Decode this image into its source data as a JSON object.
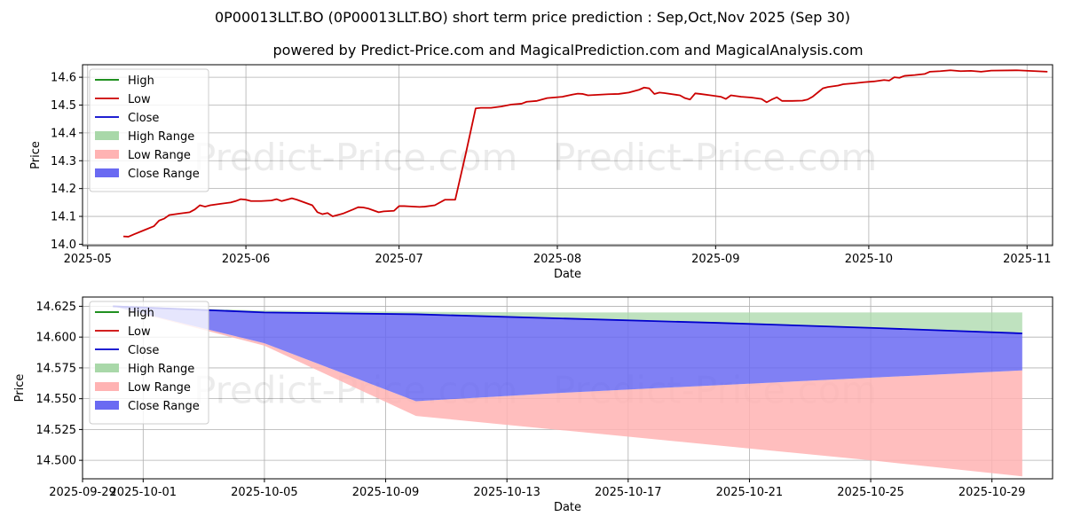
{
  "header": {
    "title": "0P00013LLT.BO (0P00013LLT.BO) short term price prediction : Sep,Oct,Nov 2025 (Sep 30)",
    "subtitle": "powered by Predict-Price.com and MagicalPrediction.com and MagicalAnalysis.com"
  },
  "watermark": "Predict-Price.com",
  "colors": {
    "high": "#008000",
    "low": "#cc0000",
    "close": "#0000cc",
    "high_range": "#a9d8a9",
    "low_range": "#ffb3b3",
    "close_range": "#6a6af2"
  },
  "chart_data": [
    {
      "type": "line",
      "title": "",
      "xlabel": "Date",
      "ylabel": "Price",
      "xlim": [
        "2025-04-30",
        "2025-11-06"
      ],
      "ylim": [
        13.995,
        14.645
      ],
      "grid": true,
      "legend_position": "top-left",
      "xticks": [
        "2025-05",
        "2025-06",
        "2025-07",
        "2025-08",
        "2025-09",
        "2025-10",
        "2025-11"
      ],
      "yticks": [
        "14.0",
        "14.1",
        "14.2",
        "14.3",
        "14.4",
        "14.5",
        "14.6"
      ],
      "legend": [
        "High",
        "Low",
        "Close",
        "High Range",
        "Low Range",
        "Close Range"
      ],
      "series": [
        {
          "name": "Low",
          "points": [
            [
              "2025-05-08",
              14.028
            ],
            [
              "2025-05-09",
              14.027
            ],
            [
              "2025-05-10",
              14.035
            ],
            [
              "2025-05-12",
              14.05
            ],
            [
              "2025-05-14",
              14.065
            ],
            [
              "2025-05-15",
              14.085
            ],
            [
              "2025-05-16",
              14.092
            ],
            [
              "2025-05-17",
              14.105
            ],
            [
              "2025-05-19",
              14.11
            ],
            [
              "2025-05-21",
              14.115
            ],
            [
              "2025-05-22",
              14.125
            ],
            [
              "2025-05-23",
              14.14
            ],
            [
              "2025-05-24",
              14.135
            ],
            [
              "2025-05-25",
              14.14
            ],
            [
              "2025-05-27",
              14.145
            ],
            [
              "2025-05-29",
              14.15
            ],
            [
              "2025-05-30",
              14.155
            ],
            [
              "2025-05-31",
              14.162
            ],
            [
              "2025-06-01",
              14.16
            ],
            [
              "2025-06-02",
              14.155
            ],
            [
              "2025-06-04",
              14.155
            ],
            [
              "2025-06-06",
              14.157
            ],
            [
              "2025-06-07",
              14.162
            ],
            [
              "2025-06-08",
              14.155
            ],
            [
              "2025-06-09",
              14.16
            ],
            [
              "2025-06-10",
              14.165
            ],
            [
              "2025-06-11",
              14.16
            ],
            [
              "2025-06-14",
              14.14
            ],
            [
              "2025-06-15",
              14.115
            ],
            [
              "2025-06-16",
              14.108
            ],
            [
              "2025-06-17",
              14.112
            ],
            [
              "2025-06-18",
              14.1
            ],
            [
              "2025-06-20",
              14.11
            ],
            [
              "2025-06-22",
              14.125
            ],
            [
              "2025-06-23",
              14.133
            ],
            [
              "2025-06-24",
              14.132
            ],
            [
              "2025-06-25",
              14.128
            ],
            [
              "2025-06-27",
              14.115
            ],
            [
              "2025-06-28",
              14.118
            ],
            [
              "2025-06-30",
              14.12
            ],
            [
              "2025-07-01",
              14.137
            ],
            [
              "2025-07-02",
              14.137
            ],
            [
              "2025-07-03",
              14.136
            ],
            [
              "2025-07-05",
              14.134
            ],
            [
              "2025-07-06",
              14.135
            ],
            [
              "2025-07-08",
              14.14
            ],
            [
              "2025-07-10",
              14.16
            ],
            [
              "2025-07-12",
              14.16
            ],
            [
              "2025-07-14",
              14.32
            ],
            [
              "2025-07-16",
              14.488
            ],
            [
              "2025-07-17",
              14.49
            ],
            [
              "2025-07-19",
              14.49
            ],
            [
              "2025-07-21",
              14.495
            ],
            [
              "2025-07-23",
              14.502
            ],
            [
              "2025-07-25",
              14.505
            ],
            [
              "2025-07-26",
              14.512
            ],
            [
              "2025-07-28",
              14.515
            ],
            [
              "2025-07-30",
              14.525
            ],
            [
              "2025-08-02",
              14.53
            ],
            [
              "2025-08-04",
              14.538
            ],
            [
              "2025-08-05",
              14.541
            ],
            [
              "2025-08-06",
              14.54
            ],
            [
              "2025-08-07",
              14.535
            ],
            [
              "2025-08-09",
              14.537
            ],
            [
              "2025-08-11",
              14.539
            ],
            [
              "2025-08-13",
              14.54
            ],
            [
              "2025-08-15",
              14.545
            ],
            [
              "2025-08-17",
              14.555
            ],
            [
              "2025-08-18",
              14.563
            ],
            [
              "2025-08-19",
              14.56
            ],
            [
              "2025-08-20",
              14.54
            ],
            [
              "2025-08-21",
              14.545
            ],
            [
              "2025-08-22",
              14.543
            ],
            [
              "2025-08-25",
              14.535
            ],
            [
              "2025-08-26",
              14.525
            ],
            [
              "2025-08-27",
              14.52
            ],
            [
              "2025-08-28",
              14.542
            ],
            [
              "2025-08-29",
              14.54
            ],
            [
              "2025-08-31",
              14.535
            ],
            [
              "2025-09-02",
              14.53
            ],
            [
              "2025-09-03",
              14.522
            ],
            [
              "2025-09-04",
              14.535
            ],
            [
              "2025-09-06",
              14.53
            ],
            [
              "2025-09-08",
              14.527
            ],
            [
              "2025-09-10",
              14.522
            ],
            [
              "2025-09-11",
              14.51
            ],
            [
              "2025-09-12",
              14.52
            ],
            [
              "2025-09-13",
              14.528
            ],
            [
              "2025-09-14",
              14.515
            ],
            [
              "2025-09-16",
              14.515
            ],
            [
              "2025-09-18",
              14.516
            ],
            [
              "2025-09-19",
              14.52
            ],
            [
              "2025-09-20",
              14.53
            ],
            [
              "2025-09-21",
              14.545
            ],
            [
              "2025-09-22",
              14.56
            ],
            [
              "2025-09-23",
              14.565
            ],
            [
              "2025-09-25",
              14.57
            ],
            [
              "2025-09-26",
              14.575
            ],
            [
              "2025-09-28",
              14.578
            ],
            [
              "2025-09-30",
              14.582
            ],
            [
              "2025-10-02",
              14.585
            ],
            [
              "2025-10-04",
              14.59
            ],
            [
              "2025-10-05",
              14.588
            ],
            [
              "2025-10-06",
              14.6
            ],
            [
              "2025-10-07",
              14.598
            ],
            [
              "2025-10-08",
              14.605
            ],
            [
              "2025-10-10",
              14.608
            ],
            [
              "2025-10-12",
              14.612
            ],
            [
              "2025-10-13",
              14.62
            ],
            [
              "2025-10-15",
              14.622
            ],
            [
              "2025-10-17",
              14.625
            ],
            [
              "2025-10-19",
              14.622
            ],
            [
              "2025-10-21",
              14.623
            ],
            [
              "2025-10-23",
              14.62
            ],
            [
              "2025-10-25",
              14.624
            ],
            [
              "2025-10-30",
              14.625
            ],
            [
              "2025-11-05",
              14.62
            ]
          ]
        }
      ]
    },
    {
      "type": "line",
      "title": "",
      "xlabel": "Date",
      "ylabel": "Price",
      "xlim": [
        "2025-09-29",
        "2025-10-31"
      ],
      "ylim": [
        14.485,
        14.6325
      ],
      "grid": true,
      "legend_position": "top-left",
      "xticks": [
        "2025-09-29",
        "2025-10-01",
        "2025-10-05",
        "2025-10-09",
        "2025-10-13",
        "2025-10-17",
        "2025-10-21",
        "2025-10-25",
        "2025-10-29"
      ],
      "yticks": [
        "14.500",
        "14.525",
        "14.550",
        "14.575",
        "14.600",
        "14.625"
      ],
      "legend": [
        "High",
        "Low",
        "Close",
        "High Range",
        "Low Range",
        "Close Range"
      ],
      "series": [
        {
          "name": "Close",
          "x": [
            "2025-09-30",
            "2025-10-05",
            "2025-10-10",
            "2025-10-15",
            "2025-10-20",
            "2025-10-25",
            "2025-10-30"
          ],
          "values": [
            14.625,
            14.62,
            14.6185,
            14.615,
            14.6115,
            14.6075,
            14.603
          ]
        },
        {
          "name": "High Range",
          "x": [
            "2025-09-30",
            "2025-10-05",
            "2025-10-10",
            "2025-10-15",
            "2025-10-20",
            "2025-10-25",
            "2025-10-30"
          ],
          "upper": [
            14.625,
            14.6215,
            14.6205,
            14.62,
            14.62,
            14.62,
            14.62
          ],
          "lower": [
            14.625,
            14.62,
            14.6185,
            14.615,
            14.6115,
            14.6075,
            14.603
          ]
        },
        {
          "name": "Close Range",
          "x": [
            "2025-09-30",
            "2025-10-05",
            "2025-10-10",
            "2025-10-15",
            "2025-10-20",
            "2025-10-25",
            "2025-10-30"
          ],
          "upper": [
            14.625,
            14.62,
            14.6185,
            14.615,
            14.6115,
            14.6075,
            14.603
          ],
          "lower": [
            14.625,
            14.595,
            14.548,
            14.555,
            14.561,
            14.567,
            14.573
          ]
        },
        {
          "name": "Low Range",
          "x": [
            "2025-09-30",
            "2025-10-05",
            "2025-10-10",
            "2025-10-15",
            "2025-10-20",
            "2025-10-25",
            "2025-10-30"
          ],
          "upper": [
            14.625,
            14.595,
            14.548,
            14.555,
            14.561,
            14.567,
            14.573
          ],
          "lower": [
            14.625,
            14.593,
            14.536,
            14.524,
            14.512,
            14.5,
            14.487
          ]
        }
      ]
    }
  ]
}
